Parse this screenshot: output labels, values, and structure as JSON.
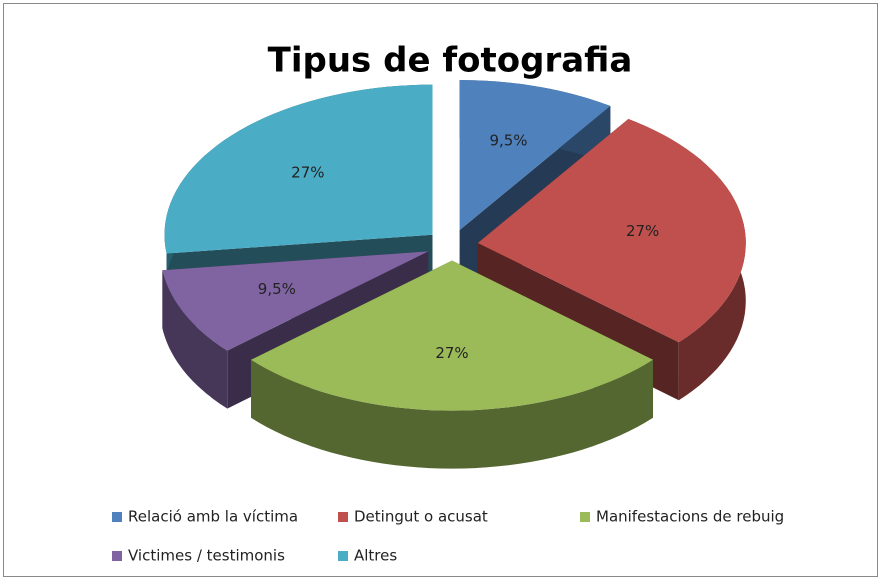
{
  "chart_data": {
    "type": "pie3d",
    "title": "Tipus de fotografia",
    "categories": [
      "Relació amb  la víctima",
      "Detingut o acusat",
      "Manifestacions de rebuig",
      "Victimes / testimonis",
      "Altres"
    ],
    "values": [
      9.5,
      27,
      27,
      9.5,
      27
    ],
    "value_labels": [
      "9,5%",
      "27%",
      "27%",
      "9,5%",
      "27%"
    ],
    "colors": [
      "#4f81bd",
      "#c0504d",
      "#9bbb59",
      "#8064a2",
      "#4bacc6"
    ],
    "legend": "bottom"
  }
}
